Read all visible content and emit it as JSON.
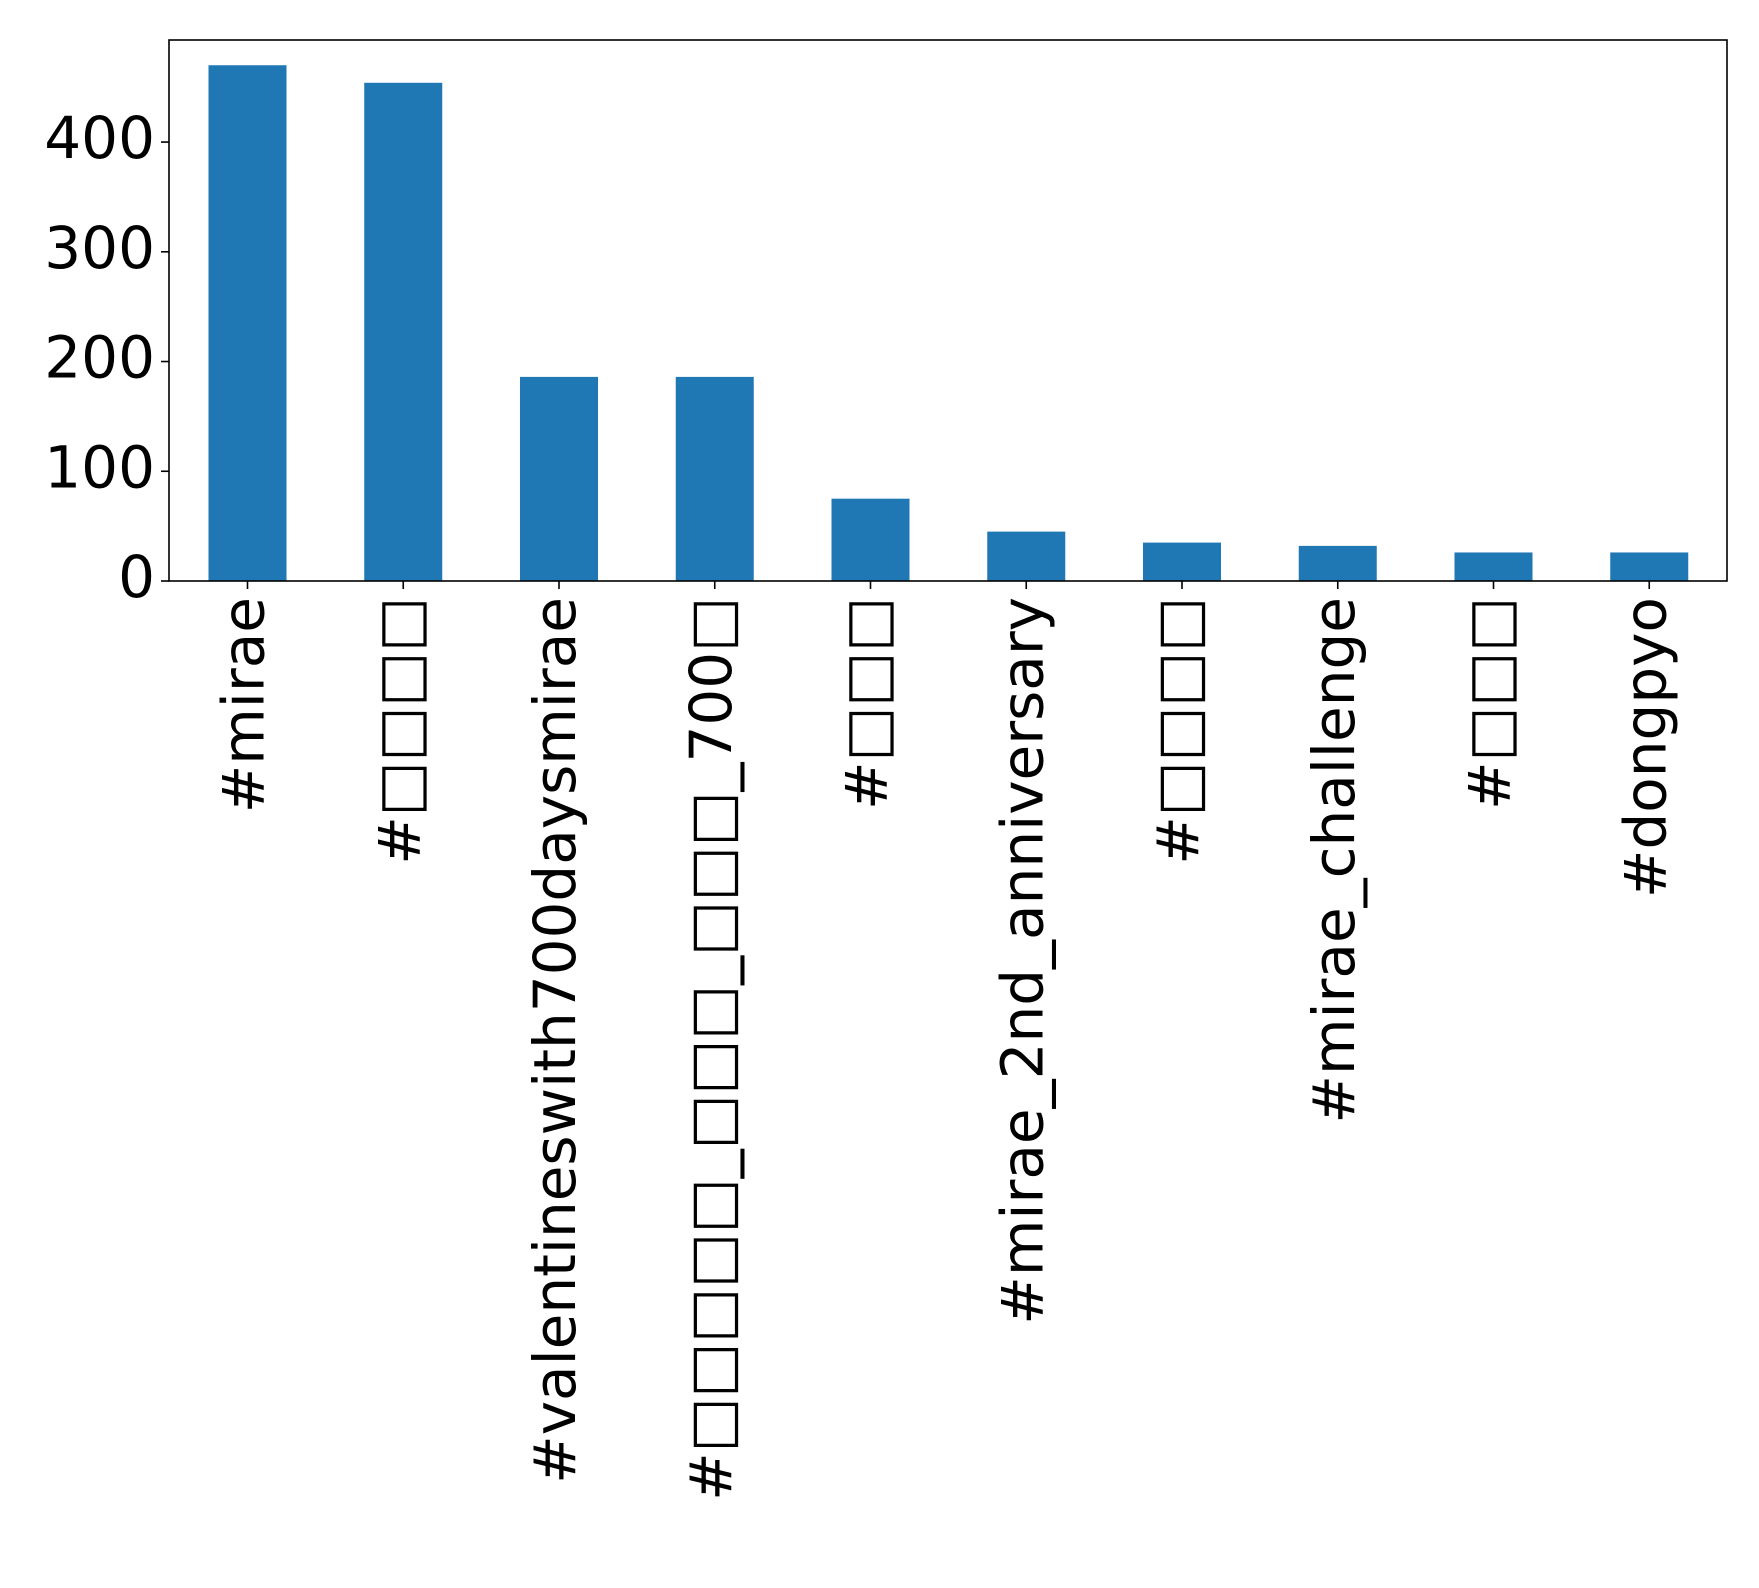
{
  "chart_data": {
    "type": "bar",
    "title": "",
    "xlabel": "",
    "ylabel": "",
    "categories": [
      "#mirae",
      "#□□□□",
      "#valentineswith700daysmirae",
      "#□□□□□_□□□_□□□_700□",
      "#□□□",
      "#mirae_2nd_anniversary",
      "#□□□□",
      "#mirae_challenge",
      "#□□□",
      "#dongpyo"
    ],
    "values": [
      470,
      454,
      186,
      186,
      75,
      45,
      35,
      32,
      26,
      26
    ],
    "ylim": [
      0,
      493
    ],
    "yticks": [
      "0",
      "100",
      "200",
      "300",
      "400"
    ],
    "bar_color": "#1f77b4",
    "grid": false,
    "legend": "none"
  }
}
